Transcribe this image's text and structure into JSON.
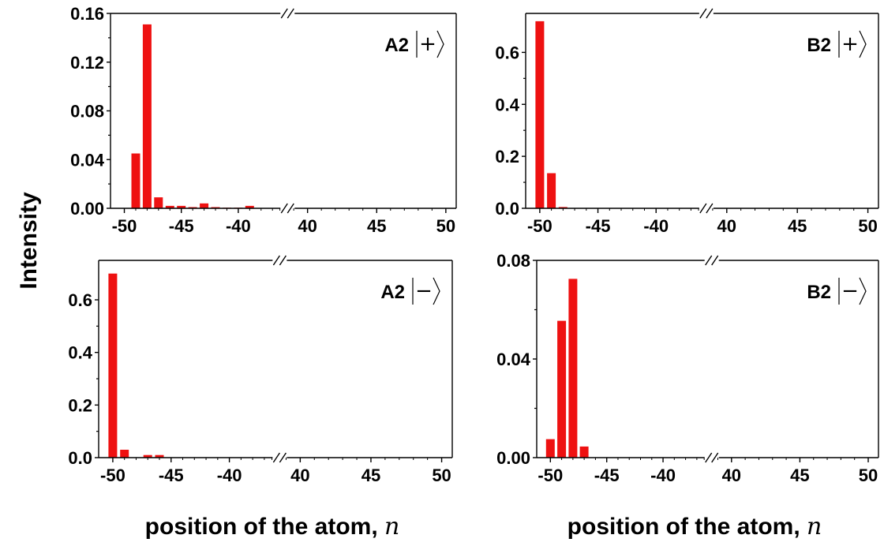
{
  "ylabel": "Intensity",
  "xlabels": [
    {
      "prefix": "position of the atom, ",
      "variable": "n"
    },
    {
      "prefix": "position of the atom, ",
      "variable": "n"
    }
  ],
  "chart_data": [
    {
      "type": "bar",
      "panel_label": "A2",
      "ket": "+",
      "ylim": [
        0,
        0.16
      ],
      "yticks": [
        "0.00",
        "0.04",
        "0.08",
        "0.12",
        "0.16"
      ],
      "xticks": [
        "-50",
        "-45",
        "-40",
        "40",
        "45",
        "50"
      ],
      "axis_break": true,
      "x": [
        -49,
        -48,
        -47,
        -46,
        -45,
        -44,
        -43,
        -42,
        -41,
        -40,
        -39
      ],
      "values": [
        0.045,
        0.151,
        0.009,
        0.002,
        0.002,
        0.001,
        0.004,
        0.001,
        0.0005,
        0.0005,
        0.002
      ]
    },
    {
      "type": "bar",
      "panel_label": "B2",
      "ket": "+",
      "ylim": [
        0,
        0.75
      ],
      "yticks": [
        "0.0",
        "0.2",
        "0.4",
        "0.6"
      ],
      "xticks": [
        "-50",
        "-45",
        "-40",
        "40",
        "45",
        "50"
      ],
      "axis_break": true,
      "x": [
        -50,
        -49,
        -48
      ],
      "values": [
        0.72,
        0.135,
        0.005
      ]
    },
    {
      "type": "bar",
      "panel_label": "A2",
      "ket": "−",
      "ylim": [
        0,
        0.75
      ],
      "yticks": [
        "0.0",
        "0.2",
        "0.4",
        "0.6"
      ],
      "xticks": [
        "-50",
        "-45",
        "-40",
        "40",
        "45",
        "50"
      ],
      "axis_break": true,
      "x": [
        -50,
        -49,
        -47,
        -46
      ],
      "values": [
        0.7,
        0.03,
        0.01,
        0.01
      ]
    },
    {
      "type": "bar",
      "panel_label": "B2",
      "ket": "−",
      "ylim": [
        0,
        0.08
      ],
      "yticks": [
        "0.00",
        "0.04",
        "0.08"
      ],
      "xticks": [
        "-50",
        "-45",
        "-40",
        "40",
        "45",
        "50"
      ],
      "axis_break": true,
      "x": [
        -50,
        -49,
        -48,
        -47
      ],
      "values": [
        0.0075,
        0.0555,
        0.0725,
        0.0045
      ]
    }
  ]
}
